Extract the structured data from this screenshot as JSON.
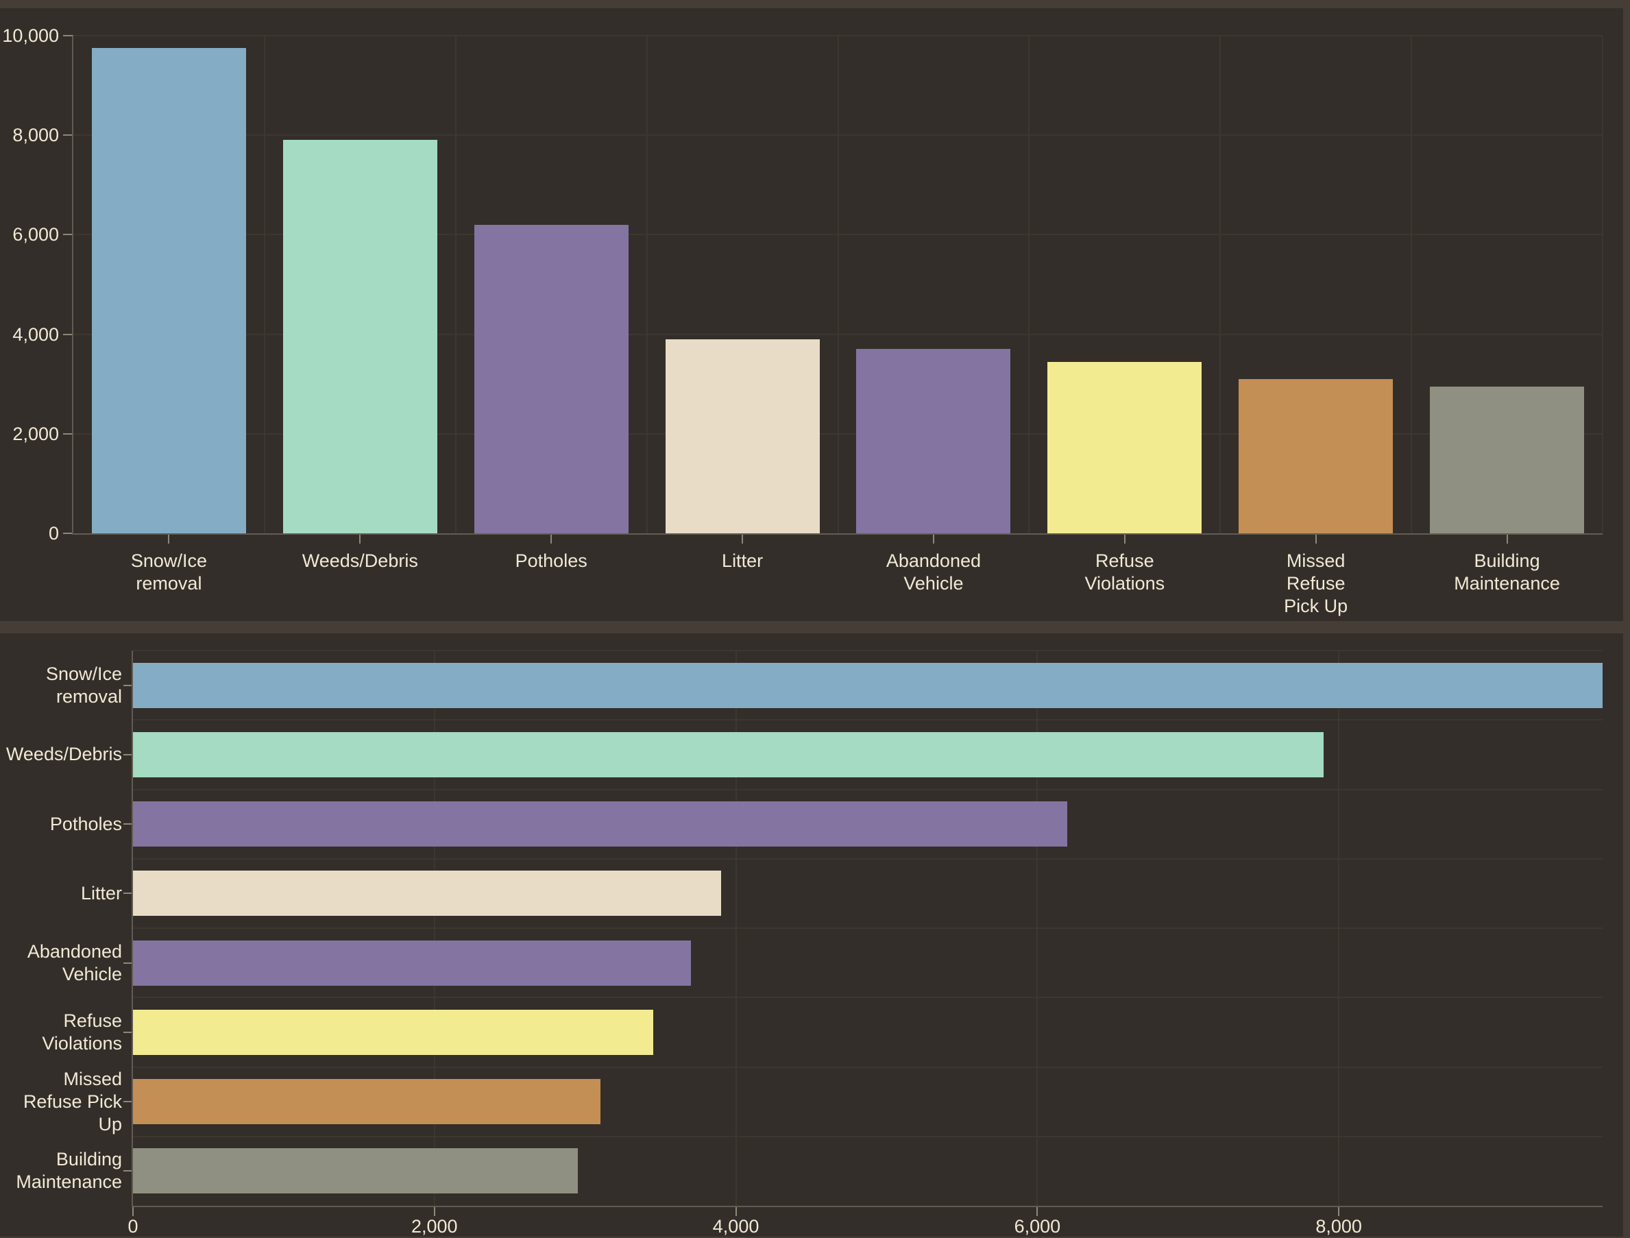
{
  "theme": {
    "page_bg": "#453D36",
    "panel_bg": "#332E29",
    "grid_color": "#3C372F",
    "axis_line_color": "#615C53",
    "tick_color": "#8E887B",
    "text_color": "#F1E9D6"
  },
  "chart_data": [
    {
      "type": "bar",
      "orientation": "vertical",
      "title": "",
      "categories": [
        "Snow/Ice removal",
        "Weeds/Debris",
        "Potholes",
        "Litter",
        "Abandoned Vehicle",
        "Refuse Violations",
        "Missed Refuse Pick Up",
        "Building Maintenance"
      ],
      "category_label_lines": [
        [
          "Snow/Ice",
          "removal"
        ],
        [
          "Weeds/Debris"
        ],
        [
          "Potholes"
        ],
        [
          "Litter"
        ],
        [
          "Abandoned",
          "Vehicle"
        ],
        [
          "Refuse",
          "Violations"
        ],
        [
          "Missed",
          "Refuse",
          "Pick Up"
        ],
        [
          "Building",
          "Maintenance"
        ]
      ],
      "values": [
        9750,
        7900,
        6200,
        3900,
        3700,
        3450,
        3100,
        2950
      ],
      "bar_colors": [
        "#84ADC5",
        "#A4DBC2",
        "#8474A1",
        "#E8DCC6",
        "#8474A1",
        "#F3EB90",
        "#C48F55",
        "#8F9081"
      ],
      "xlabel": "",
      "ylabel": "",
      "ylim": [
        0,
        10000
      ],
      "y_ticks": [
        {
          "value": 0,
          "label": "0"
        },
        {
          "value": 2000,
          "label": "2,000"
        },
        {
          "value": 4000,
          "label": "4,000"
        },
        {
          "value": 6000,
          "label": "6,000"
        },
        {
          "value": 8000,
          "label": "8,000"
        },
        {
          "value": 10000,
          "label": "10,000"
        }
      ],
      "grid": true,
      "legend": false
    },
    {
      "type": "bar",
      "orientation": "horizontal",
      "title": "",
      "categories": [
        "Snow/Ice removal",
        "Weeds/Debris",
        "Potholes",
        "Litter",
        "Abandoned Vehicle",
        "Refuse Violations",
        "Missed Refuse Pick Up",
        "Building Maintenance"
      ],
      "category_label_lines": [
        [
          "Snow/Ice",
          "removal"
        ],
        [
          "Weeds/Debris"
        ],
        [
          "Potholes"
        ],
        [
          "Litter"
        ],
        [
          "Abandoned",
          "Vehicle"
        ],
        [
          "Refuse",
          "Violations"
        ],
        [
          "Missed",
          "Refuse Pick",
          "Up"
        ],
        [
          "Building",
          "Maintenance"
        ]
      ],
      "values": [
        9750,
        7900,
        6200,
        3900,
        3700,
        3450,
        3100,
        2950
      ],
      "bar_colors": [
        "#84ADC5",
        "#A4DBC2",
        "#8474A1",
        "#E8DCC6",
        "#8474A1",
        "#F3EB90",
        "#C48F55",
        "#8F9081"
      ],
      "xlabel": "",
      "ylabel": "",
      "xlim": [
        0,
        9750
      ],
      "x_ticks": [
        {
          "value": 0,
          "label": "0"
        },
        {
          "value": 2000,
          "label": "2,000"
        },
        {
          "value": 4000,
          "label": "4,000"
        },
        {
          "value": 6000,
          "label": "6,000"
        },
        {
          "value": 8000,
          "label": "8,000"
        }
      ],
      "grid": true,
      "legend": false
    }
  ]
}
